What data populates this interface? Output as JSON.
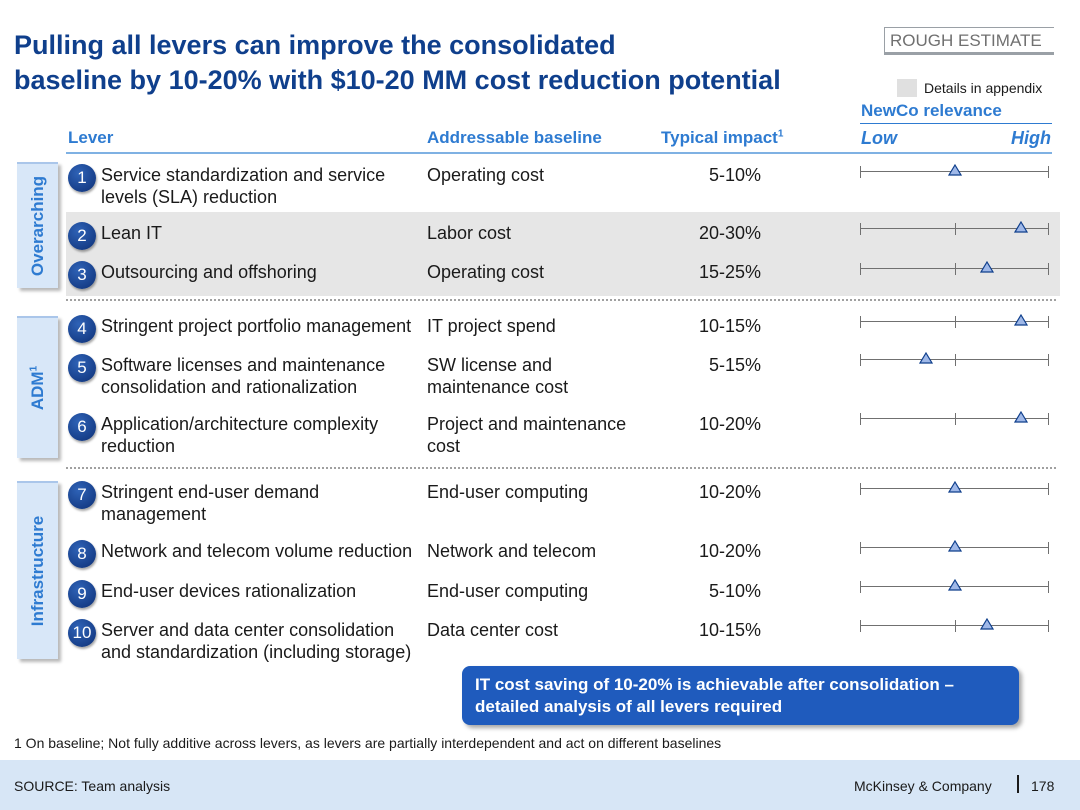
{
  "title_line1": "Pulling all levers can improve the consolidated",
  "title_line2": "baseline by 10-20% with $10-20 MM cost reduction potential",
  "rough_estimate": "ROUGH ESTIMATE",
  "legend": {
    "label": "Details in appendix",
    "swatch_color": "#e0e0e0"
  },
  "columns": {
    "lever": "Lever",
    "baseline": "Addressable baseline",
    "impact": "Typical impact",
    "impact_note": "1"
  },
  "relevance": {
    "title": "NewCo relevance",
    "low": "Low",
    "high": "High"
  },
  "groups": [
    {
      "label": "Overarching",
      "sup": ""
    },
    {
      "label": "ADM",
      "sup": "1"
    },
    {
      "label": "Infrastructure",
      "sup": ""
    }
  ],
  "rows": [
    {
      "num": "1",
      "lever": "Service standardization and service levels (SLA) reduction",
      "baseline": "Operating cost",
      "impact": "5-10%",
      "relevance": 0.5,
      "scale_ticks": [
        0,
        1
      ]
    },
    {
      "num": "2",
      "lever": "Lean IT",
      "baseline": "Labor cost",
      "impact": "20-30%",
      "relevance": 0.85,
      "scale_ticks": [
        0,
        0.5,
        1
      ]
    },
    {
      "num": "3",
      "lever": "Outsourcing and offshoring",
      "baseline": "Operating cost",
      "impact": "15-25%",
      "relevance": 0.67,
      "scale_ticks": [
        0,
        0.5,
        1
      ]
    },
    {
      "num": "4",
      "lever": "Stringent project portfolio management",
      "baseline": "IT project spend",
      "impact": "10-15%",
      "relevance": 0.85,
      "scale_ticks": [
        0,
        0.5,
        1
      ]
    },
    {
      "num": "5",
      "lever": "Software licenses and maintenance consolidation and rationalization",
      "baseline": "SW license and maintenance cost",
      "impact": "5-15%",
      "relevance": 0.35,
      "scale_ticks": [
        0,
        0.5,
        1
      ]
    },
    {
      "num": "6",
      "lever": "Application/architecture complexity reduction",
      "baseline": "Project and maintenance cost",
      "impact": "10-20%",
      "relevance": 0.85,
      "scale_ticks": [
        0,
        0.5,
        1
      ]
    },
    {
      "num": "7",
      "lever": "Stringent end-user demand management",
      "baseline": "End-user computing",
      "impact": "10-20%",
      "relevance": 0.5,
      "scale_ticks": [
        0,
        1
      ]
    },
    {
      "num": "8",
      "lever": "Network and telecom volume reduction",
      "baseline": "Network and telecom",
      "impact": "10-20%",
      "relevance": 0.5,
      "scale_ticks": [
        0,
        1
      ]
    },
    {
      "num": "9",
      "lever": "End-user devices rationalization",
      "baseline": "End-user computing",
      "impact": "5-10%",
      "relevance": 0.5,
      "scale_ticks": [
        0,
        1
      ]
    },
    {
      "num": "10",
      "lever": "Server and data center consolidation and standardization (including storage)",
      "baseline": "Data center cost",
      "impact": "10-15%",
      "relevance": 0.67,
      "scale_ticks": [
        0,
        0.5,
        1
      ]
    }
  ],
  "callout_line1": "IT cost saving of 10-20% is achievable after consolidation –",
  "callout_line2": "detailed analysis of all levers required",
  "footnote": "1 On baseline; Not fully additive across levers, as levers are partially interdependent and act on different baselines",
  "source": "SOURCE: Team analysis",
  "company": "McKinsey & Company",
  "page": "178",
  "colors": {
    "brand_dark": "#0f3f8c",
    "brand_accent": "#2e7bd1",
    "marker_fill": "#9fb8e8"
  }
}
